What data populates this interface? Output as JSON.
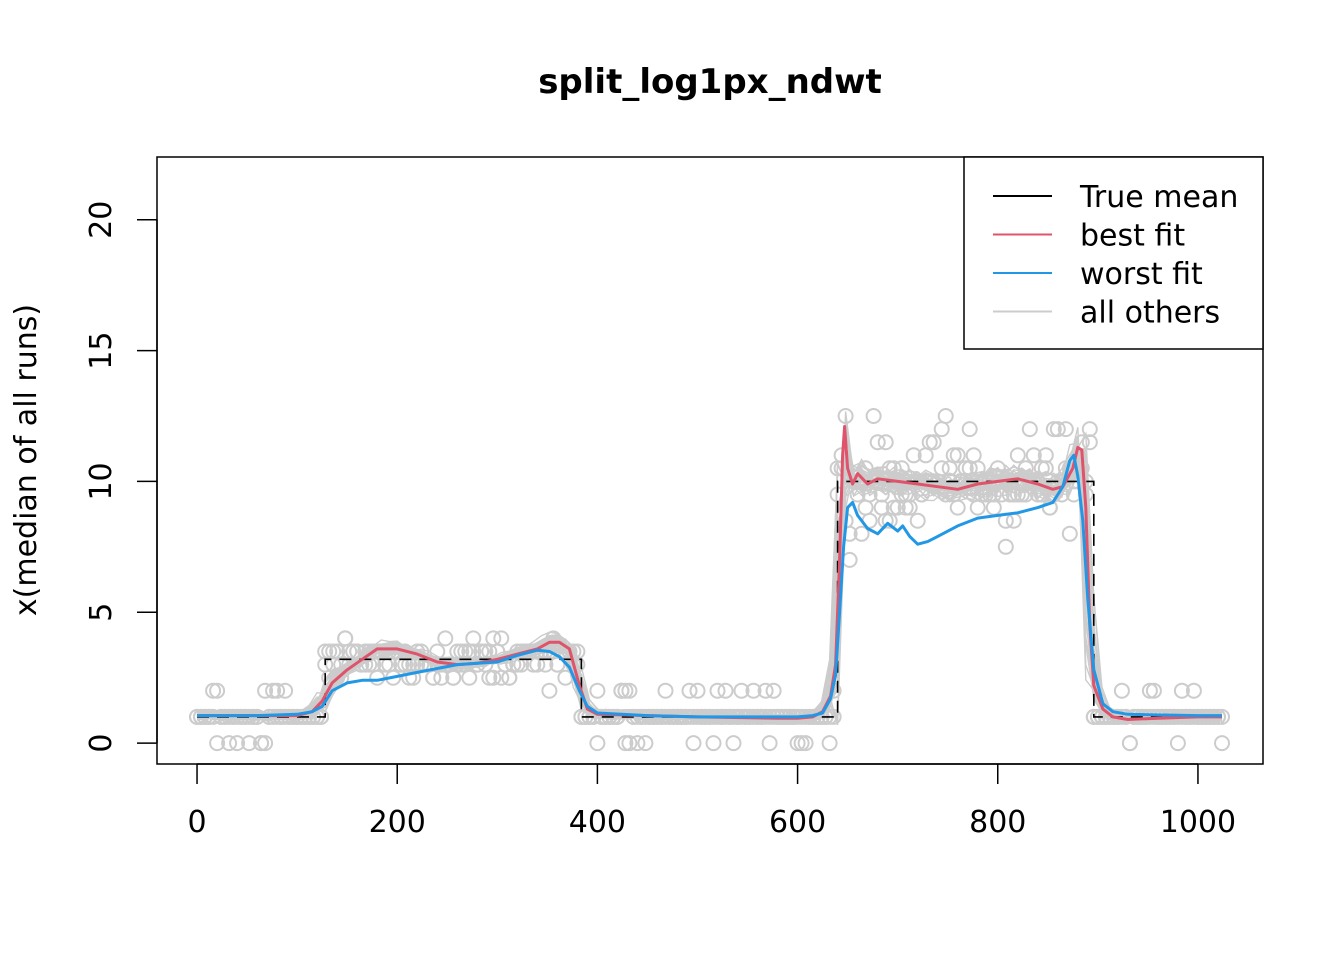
{
  "chart_data": {
    "type": "line",
    "title": "split_log1px_ndwt",
    "xlabel": "",
    "ylabel": "x(median of all runs)",
    "xlim": [
      -40,
      1065
    ],
    "ylim": [
      -0.8,
      22.4
    ],
    "x_ticks": [
      0,
      200,
      400,
      600,
      800,
      1000
    ],
    "y_ticks": [
      0,
      5,
      10,
      15,
      20
    ],
    "grid": false,
    "legend_position": "top-right",
    "legend": [
      {
        "label": "True mean",
        "color": "#000000"
      },
      {
        "label": "best fit",
        "color": "#DF536B"
      },
      {
        "label": "worst fit",
        "color": "#2297E6"
      },
      {
        "label": "all others",
        "color": "#CCCCCC"
      }
    ],
    "true_mean": {
      "name": "True mean",
      "color": "#000000",
      "points": [
        [
          0,
          1
        ],
        [
          128,
          1
        ],
        [
          128,
          3.2
        ],
        [
          384,
          3.2
        ],
        [
          384,
          1
        ],
        [
          640,
          1
        ],
        [
          640,
          10
        ],
        [
          896,
          10
        ],
        [
          896,
          1
        ],
        [
          1024,
          1
        ]
      ]
    },
    "best_fit": {
      "name": "best fit",
      "color": "#DF536B",
      "points": [
        [
          0,
          1.05
        ],
        [
          60,
          1.05
        ],
        [
          100,
          1.05
        ],
        [
          115,
          1.2
        ],
        [
          125,
          1.6
        ],
        [
          135,
          2.3
        ],
        [
          150,
          2.8
        ],
        [
          165,
          3.2
        ],
        [
          180,
          3.6
        ],
        [
          200,
          3.6
        ],
        [
          220,
          3.4
        ],
        [
          240,
          3.1
        ],
        [
          260,
          3.0
        ],
        [
          280,
          3.05
        ],
        [
          300,
          3.2
        ],
        [
          320,
          3.4
        ],
        [
          340,
          3.6
        ],
        [
          352,
          3.85
        ],
        [
          362,
          3.85
        ],
        [
          372,
          3.6
        ],
        [
          382,
          2.2
        ],
        [
          390,
          1.3
        ],
        [
          400,
          1.1
        ],
        [
          450,
          1.05
        ],
        [
          500,
          1.0
        ],
        [
          580,
          0.95
        ],
        [
          600,
          0.95
        ],
        [
          615,
          1.0
        ],
        [
          625,
          1.2
        ],
        [
          633,
          1.8
        ],
        [
          638,
          3.0
        ],
        [
          642,
          7.0
        ],
        [
          645,
          11.0
        ],
        [
          647,
          12.1
        ],
        [
          650,
          10.5
        ],
        [
          655,
          9.9
        ],
        [
          660,
          10.3
        ],
        [
          670,
          9.9
        ],
        [
          680,
          10.1
        ],
        [
          700,
          10.0
        ],
        [
          720,
          9.9
        ],
        [
          740,
          9.8
        ],
        [
          760,
          9.7
        ],
        [
          780,
          9.9
        ],
        [
          800,
          10.0
        ],
        [
          820,
          10.1
        ],
        [
          840,
          9.9
        ],
        [
          855,
          9.7
        ],
        [
          865,
          9.8
        ],
        [
          875,
          10.5
        ],
        [
          880,
          11.3
        ],
        [
          884,
          11.2
        ],
        [
          888,
          9.0
        ],
        [
          892,
          4.5
        ],
        [
          896,
          2.2
        ],
        [
          905,
          1.3
        ],
        [
          915,
          1.0
        ],
        [
          930,
          0.9
        ],
        [
          960,
          0.95
        ],
        [
          1000,
          1.0
        ],
        [
          1024,
          1.0
        ]
      ]
    },
    "worst_fit": {
      "name": "worst fit",
      "color": "#2297E6",
      "points": [
        [
          0,
          1.05
        ],
        [
          60,
          1.05
        ],
        [
          100,
          1.1
        ],
        [
          115,
          1.2
        ],
        [
          125,
          1.4
        ],
        [
          135,
          2.0
        ],
        [
          150,
          2.3
        ],
        [
          165,
          2.4
        ],
        [
          180,
          2.4
        ],
        [
          200,
          2.55
        ],
        [
          220,
          2.7
        ],
        [
          240,
          2.85
        ],
        [
          260,
          3.0
        ],
        [
          280,
          3.05
        ],
        [
          300,
          3.1
        ],
        [
          320,
          3.35
        ],
        [
          340,
          3.55
        ],
        [
          352,
          3.5
        ],
        [
          362,
          3.3
        ],
        [
          372,
          2.9
        ],
        [
          382,
          2.0
        ],
        [
          390,
          1.4
        ],
        [
          400,
          1.15
        ],
        [
          450,
          1.05
        ],
        [
          500,
          1.0
        ],
        [
          560,
          1.0
        ],
        [
          600,
          1.0
        ],
        [
          615,
          1.05
        ],
        [
          625,
          1.15
        ],
        [
          633,
          1.7
        ],
        [
          638,
          2.6
        ],
        [
          642,
          5.0
        ],
        [
          646,
          7.5
        ],
        [
          650,
          9.0
        ],
        [
          655,
          9.2
        ],
        [
          660,
          8.7
        ],
        [
          670,
          8.2
        ],
        [
          680,
          8.0
        ],
        [
          690,
          8.4
        ],
        [
          700,
          8.1
        ],
        [
          705,
          8.3
        ],
        [
          712,
          7.9
        ],
        [
          720,
          7.6
        ],
        [
          730,
          7.7
        ],
        [
          740,
          7.9
        ],
        [
          760,
          8.3
        ],
        [
          780,
          8.6
        ],
        [
          800,
          8.7
        ],
        [
          820,
          8.8
        ],
        [
          840,
          9.0
        ],
        [
          855,
          9.2
        ],
        [
          865,
          9.8
        ],
        [
          872,
          10.8
        ],
        [
          876,
          11.0
        ],
        [
          880,
          10.2
        ],
        [
          885,
          8.5
        ],
        [
          890,
          5.5
        ],
        [
          896,
          2.8
        ],
        [
          905,
          1.5
        ],
        [
          915,
          1.2
        ],
        [
          930,
          1.1
        ],
        [
          1000,
          1.05
        ],
        [
          1024,
          1.05
        ]
      ]
    }
  }
}
